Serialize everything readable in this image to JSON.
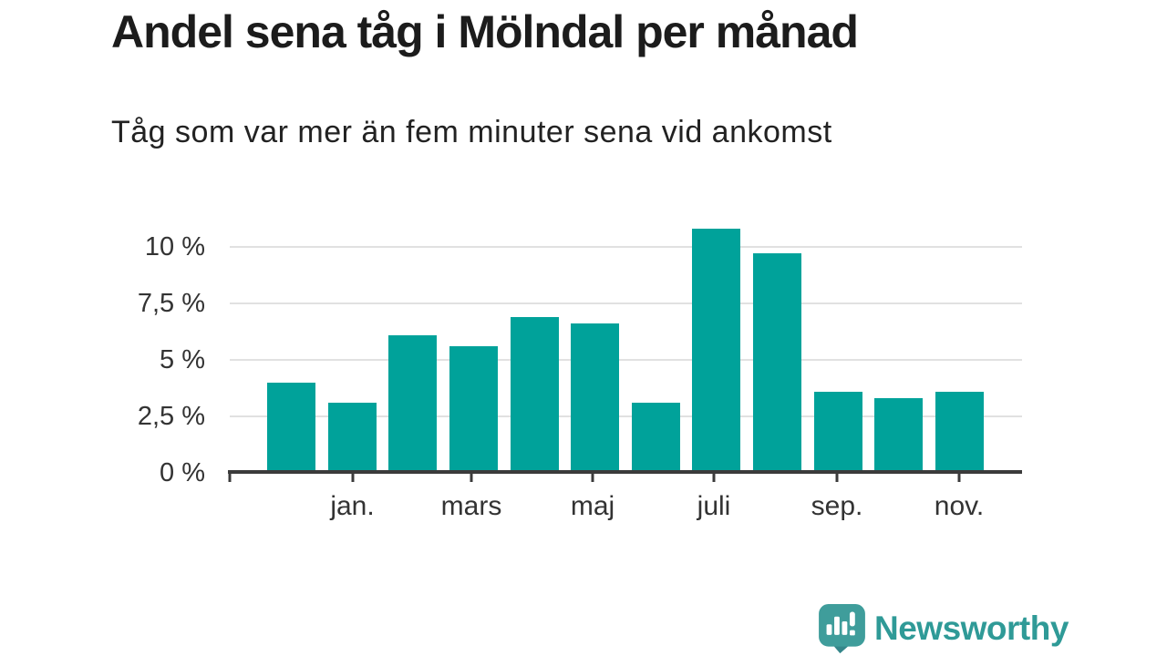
{
  "header": {
    "title": "Andel sena tåg i Mölndal per månad",
    "subtitle": "Tåg som var mer än fem minuter sena vid ankomst"
  },
  "chart_data": {
    "type": "bar",
    "title": "Andel sena tåg i Mölndal per månad",
    "subtitle": "Tåg som var mer än fem minuter sena vid ankomst",
    "values": [
      4.0,
      3.1,
      6.1,
      5.6,
      6.9,
      6.6,
      3.1,
      10.8,
      9.7,
      3.6,
      3.3,
      3.6
    ],
    "x_tick_labels": [
      "jan.",
      "mars",
      "maj",
      "juli",
      "sep.",
      "nov."
    ],
    "x_tick_every_nth_bar": 2,
    "y_tick_labels_top_to_bottom": [
      "10 %",
      "7,5 %",
      "5 %",
      "2,5 %",
      "0 %"
    ],
    "ylim": [
      0,
      11.7
    ],
    "grid": "horizontal",
    "legend": "none",
    "bar_color": "#00a29a"
  },
  "colors": {
    "bar": "#00a29a",
    "gridline": "#e1e1e1",
    "axis": "#3b3b3b",
    "title_text": "#1c1c1c",
    "tick_text": "#333333",
    "brand_teal": "#2f9a97",
    "brand_bubble": "#3f9d9b",
    "brand_bubble_dark": "#35868a"
  },
  "brand": {
    "name": "Newsworthy",
    "icon": "newsworthy-chart-bubble-icon"
  }
}
